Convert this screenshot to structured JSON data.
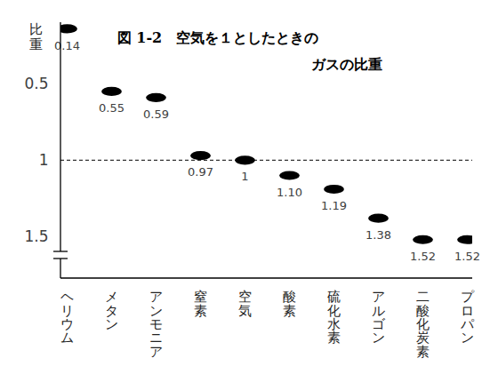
{
  "chart_data": {
    "type": "scatter",
    "title": [
      "図 1-2　空気を１としたときの",
      "ガスの比重"
    ],
    "ylabel": "比重",
    "categories": [
      "ヘリウム",
      "メタン",
      "アンモニア",
      "窒素",
      "空気",
      "酸素",
      "硫化水素",
      "アルゴン",
      "二酸化炭素",
      "プロパン"
    ],
    "values": [
      0.14,
      0.55,
      0.59,
      0.97,
      1,
      1.1,
      1.19,
      1.38,
      1.52,
      1.52
    ],
    "value_labels": [
      "0.14",
      "0.55",
      "0.59",
      "0.97",
      "1",
      "1.10",
      "1.19",
      "1.38",
      "1.52",
      "1.52"
    ],
    "color": "#000000",
    "marker": "ellipse",
    "ylim": [
      0.1,
      1.6
    ],
    "yticks": [
      0.5,
      1,
      1.5
    ],
    "reference_line": 1,
    "data_labels": true
  }
}
